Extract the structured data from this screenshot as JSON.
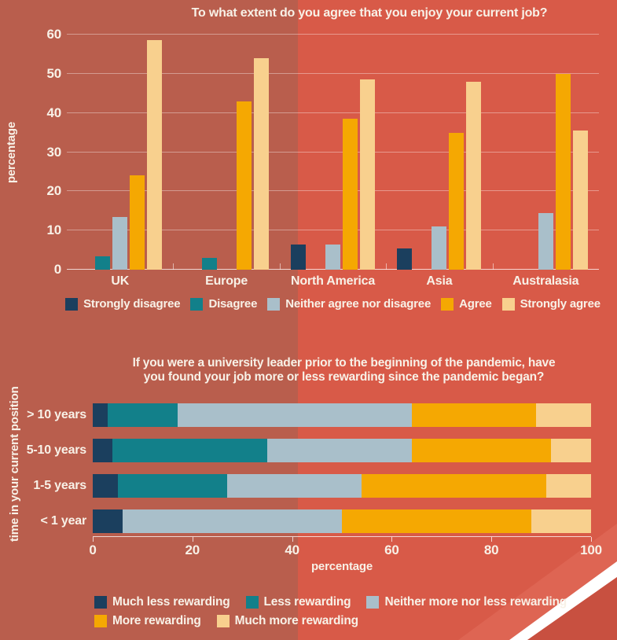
{
  "decor": {
    "background_left": "#b95e4d",
    "background_right": "#d85a48",
    "corner_band_light": "#de6553",
    "corner_stripe_white": "#ffffff",
    "corner_dark": "#c85040",
    "text_color": "#f8f1e7"
  },
  "chart_data": [
    {
      "type": "bar",
      "title": "To what extent do you agree that you enjoy your current job?",
      "ylabel": "percentage",
      "xlabel": "",
      "ylim": [
        0,
        60
      ],
      "yticks": [
        0,
        10,
        20,
        30,
        40,
        50,
        60
      ],
      "grid": true,
      "legend_position": "bottom",
      "categories": [
        "UK",
        "Europe",
        "North America",
        "Asia",
        "Australasia"
      ],
      "series": [
        {
          "name": "Strongly disagree",
          "color": "#1b3f5e",
          "values": [
            0,
            0,
            6.5,
            5.5,
            0
          ]
        },
        {
          "name": "Disagree",
          "color": "#12808a",
          "values": [
            3.5,
            3,
            0,
            0,
            0
          ]
        },
        {
          "name": "Neither agree nor disagree",
          "color": "#a9bfca",
          "values": [
            13.5,
            0,
            6.5,
            11,
            14.5
          ]
        },
        {
          "name": "Agree",
          "color": "#f5a802",
          "values": [
            24,
            43,
            38.5,
            35,
            50
          ]
        },
        {
          "name": "Strongly agree",
          "color": "#f8d08e",
          "values": [
            58.5,
            54,
            48.5,
            48,
            35.5
          ]
        }
      ]
    },
    {
      "type": "stacked-bar-horizontal",
      "title_lines": [
        "If you were a university leader prior to the beginning of the pandemic, have",
        "you found your job more or less rewarding since the pandemic began?"
      ],
      "ylabel": "time in your current position",
      "xlabel": "percentage",
      "xlim": [
        0,
        100
      ],
      "xticks": [
        0,
        20,
        40,
        60,
        80,
        100
      ],
      "grid": false,
      "legend_position": "bottom-left",
      "categories": [
        "> 10 years",
        "5-10 years",
        "1-5 years",
        "< 1 year"
      ],
      "series": [
        {
          "name": "Much less rewarding",
          "color": "#1b3f5e",
          "values": [
            3,
            4,
            5,
            6
          ]
        },
        {
          "name": "Less rewarding",
          "color": "#12808a",
          "values": [
            14,
            31,
            22,
            0
          ]
        },
        {
          "name": "Neither more nor less rewarding",
          "color": "#a9bfca",
          "values": [
            47,
            29,
            27,
            44
          ]
        },
        {
          "name": "More rewarding",
          "color": "#f5a802",
          "values": [
            25,
            28,
            37,
            38
          ]
        },
        {
          "name": "Much more rewarding",
          "color": "#f8d08e",
          "values": [
            11,
            8,
            9,
            12
          ]
        }
      ],
      "legend_rows": [
        [
          "Much less rewarding",
          "Less rewarding",
          "Neither more nor less rewarding"
        ],
        [
          "More rewarding",
          "Much more rewarding"
        ]
      ]
    }
  ]
}
